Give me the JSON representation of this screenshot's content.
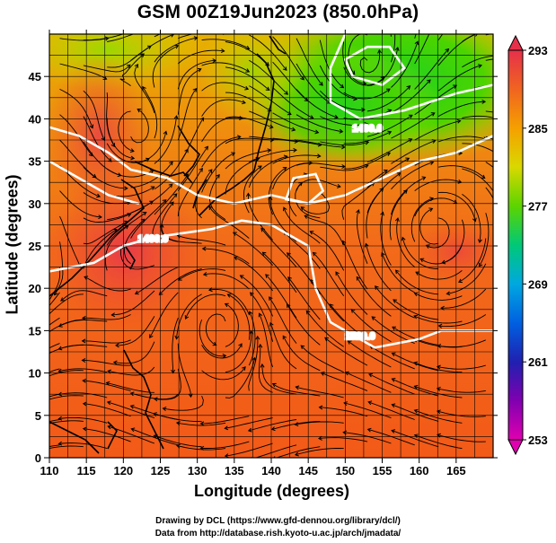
{
  "title": "GSM 00Z19Jun2023 (850.0hPa)",
  "xlabel": "Longitude (degrees)",
  "ylabel": "Latitude  (degrees)",
  "credits": [
    "Drawing by DCL (https://www.gfd-dennou.org/library/dcl/)",
    "Data from http://database.rish.kyoto-u.ac.jp/arch/jmadata/"
  ],
  "colorbar": {
    "ticks": [
      "293",
      "285",
      "277",
      "269",
      "261",
      "253"
    ],
    "colors": [
      "#e6304a",
      "#f06420",
      "#f5a000",
      "#d9d800",
      "#5cd400",
      "#00c878",
      "#00a8e0",
      "#0060e0",
      "#2020b0",
      "#8000b0",
      "#e000b0"
    ]
  },
  "chart_data": {
    "type": "map",
    "xlim": [
      110,
      170
    ],
    "ylim": [
      0,
      50
    ],
    "x_ticks": [
      110,
      115,
      120,
      125,
      130,
      135,
      140,
      145,
      150,
      155,
      160,
      165
    ],
    "y_ticks": [
      0,
      5,
      10,
      15,
      20,
      25,
      30,
      35,
      40,
      45
    ],
    "x_tick_labels": [
      "110",
      "115",
      "120",
      "125",
      "130",
      "135",
      "140",
      "145",
      "150",
      "155",
      "160",
      "165"
    ],
    "y_tick_labels": [
      "0",
      "5",
      "10",
      "15",
      "20",
      "25",
      "30",
      "35",
      "40",
      "45"
    ],
    "contour_labels": [
      "1400.0",
      "1460.0",
      "1520.0"
    ]
  }
}
